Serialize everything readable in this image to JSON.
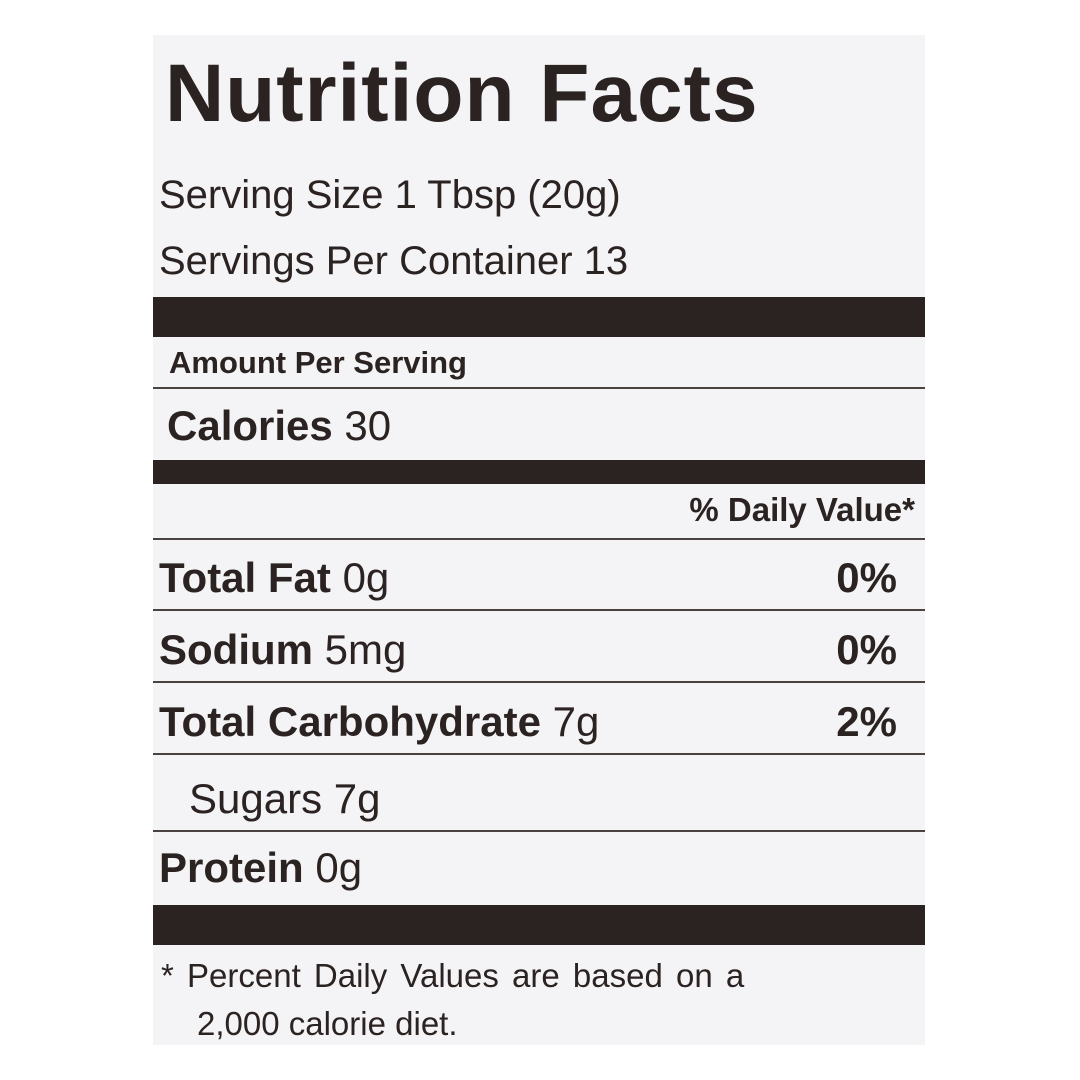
{
  "title": "Nutrition Facts",
  "serving_size": "Serving Size 1 Tbsp (20g)",
  "servings_per_container": "Servings Per Container 13",
  "amount_per_serving": "Amount Per Serving",
  "calories": {
    "label": "Calories",
    "amount": "30"
  },
  "daily_value_header": "% Daily Value*",
  "rows": [
    {
      "name": "Total Fat",
      "amount": "0g",
      "dv": "0%"
    },
    {
      "name": "Sodium",
      "amount": "5mg",
      "dv": "0%"
    },
    {
      "name": "Total Carbohydrate",
      "amount": "7g",
      "dv": "2%"
    }
  ],
  "sugars": "Sugars 7g",
  "protein": {
    "name": "Protein",
    "amount": "0g"
  },
  "footnote": [
    "* Percent Daily Values are based on a",
    "2,000 calorie diet."
  ]
}
